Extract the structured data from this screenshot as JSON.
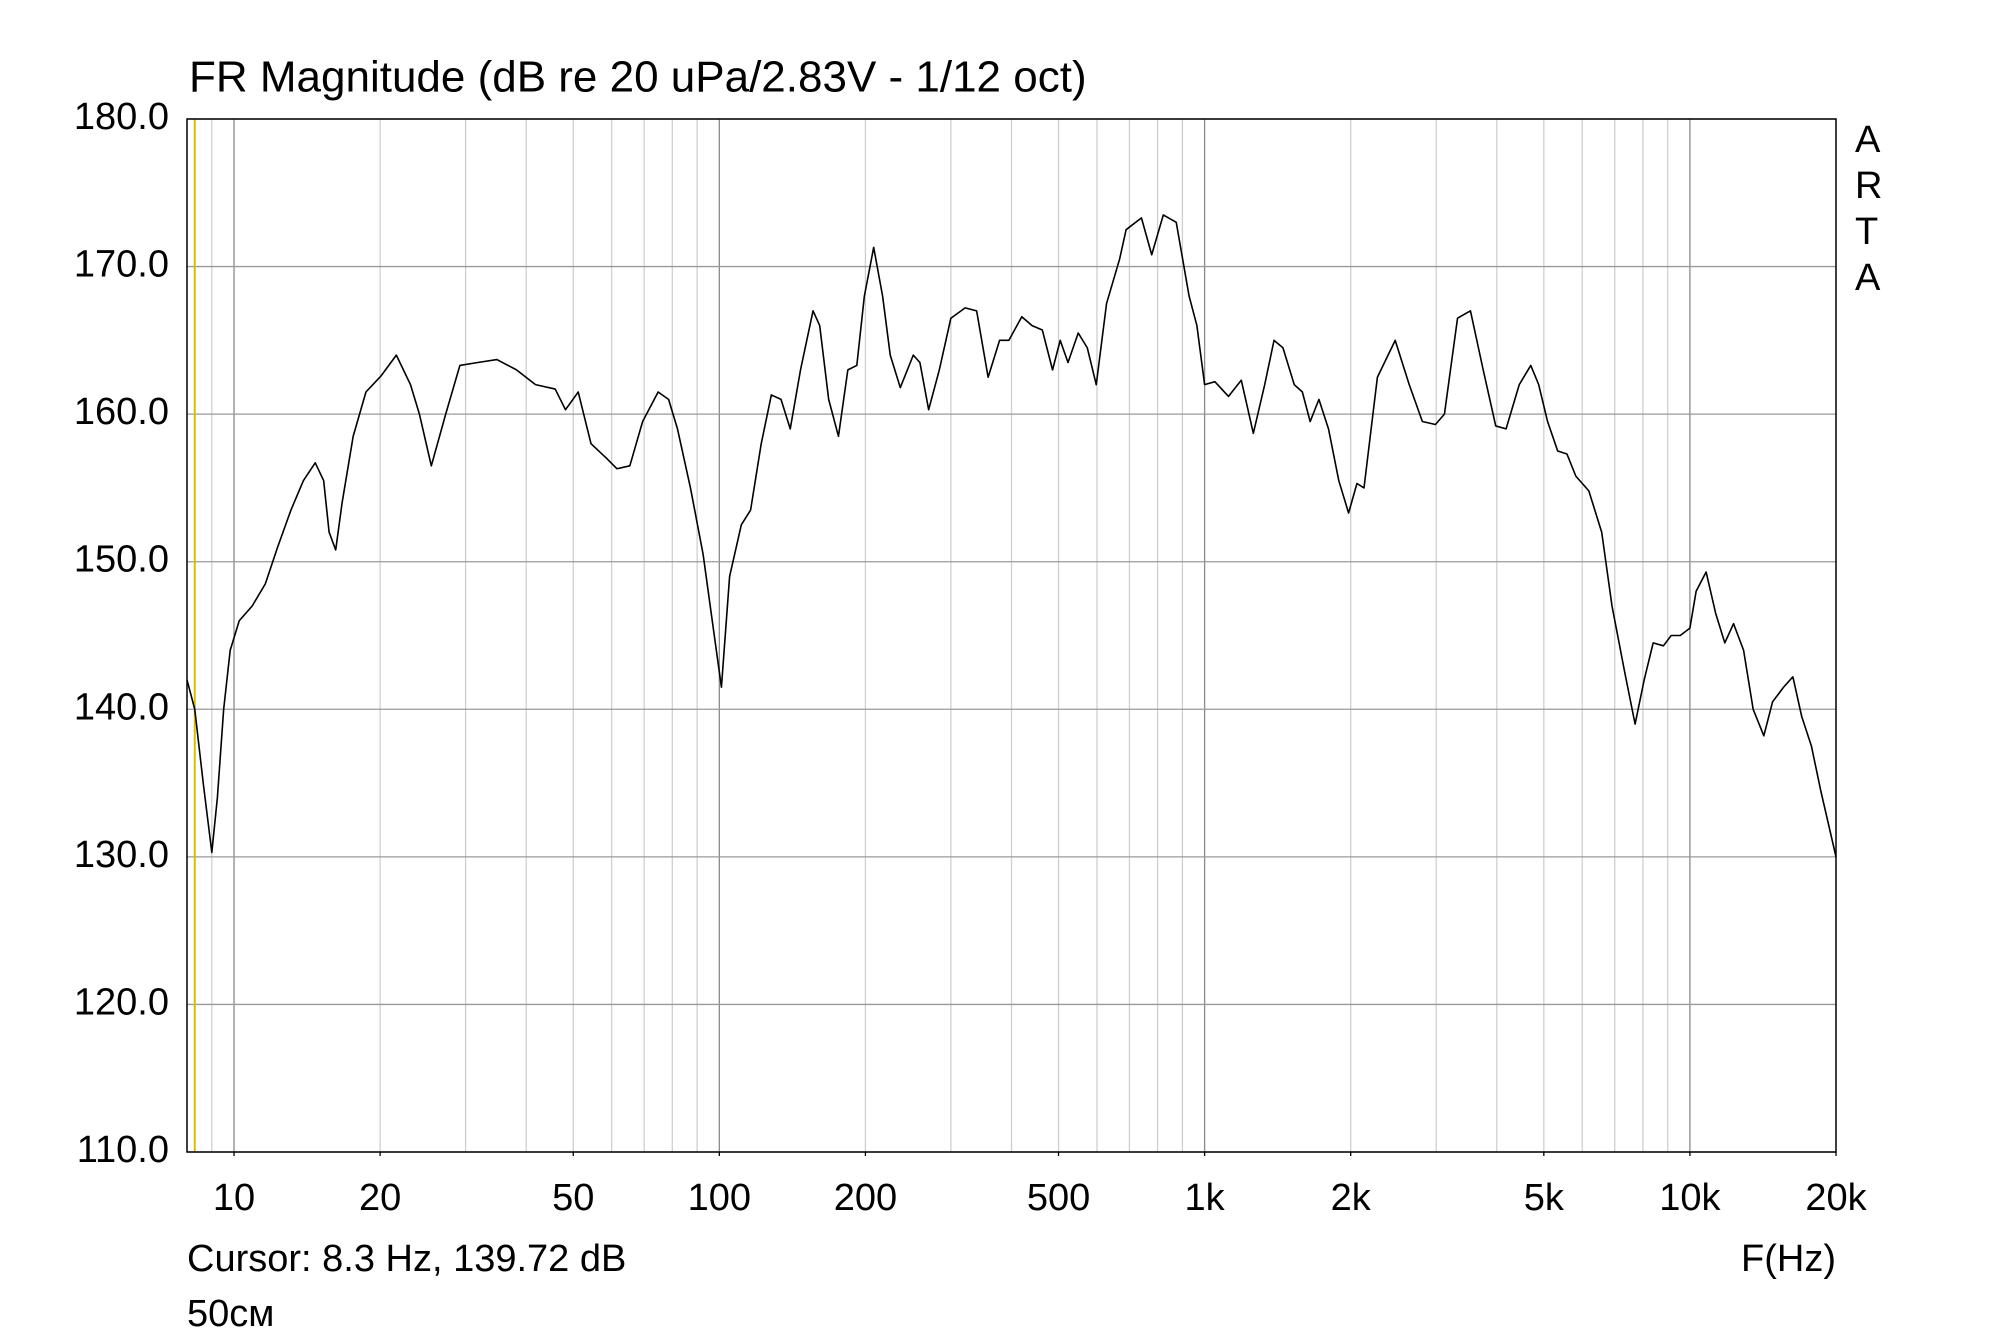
{
  "chart_data": {
    "type": "line",
    "title": "FR Magnitude (dB re 20 uPa/2.83V - 1/12 oct)",
    "xlabel": "F(Hz)",
    "brand": "ARTA",
    "note": "50см",
    "cursor": {
      "label": "Cursor: 8.3 Hz, 139.72 dB",
      "x": 8.3,
      "color": "#d4c000"
    },
    "xscale": "log",
    "xlim": [
      8,
      20000
    ],
    "ylim": [
      110,
      180
    ],
    "grid": true,
    "xticks": [
      10,
      20,
      50,
      100,
      200,
      500,
      {
        "value": 1000,
        "label": "1k"
      },
      {
        "value": 2000,
        "label": "2k"
      },
      {
        "value": 5000,
        "label": "5k"
      },
      {
        "value": 10000,
        "label": "10k"
      },
      {
        "value": 20000,
        "label": "20k"
      }
    ],
    "yticks": [
      {
        "value": 110,
        "label": "110.0"
      },
      {
        "value": 120,
        "label": "120.0"
      },
      {
        "value": 130,
        "label": "130.0"
      },
      {
        "value": 140,
        "label": "140.0"
      },
      {
        "value": 150,
        "label": "150.0"
      },
      {
        "value": 160,
        "label": "160.0"
      },
      {
        "value": 170,
        "label": "170.0"
      },
      {
        "value": 180,
        "label": "180.0"
      }
    ],
    "x": [
      8.0,
      8.3,
      8.64,
      9.0,
      9.24,
      9.52,
      9.82,
      10.25,
      10.9,
      11.6,
      12.3,
      13.1,
      13.9,
      14.7,
      15.3,
      15.7,
      16.2,
      16.7,
      17.6,
      18.7,
      20.1,
      21.6,
      23.1,
      24.1,
      25.5,
      27.3,
      29.2,
      31.8,
      34.8,
      38.2,
      41.8,
      45.9,
      48.2,
      51.2,
      54.4,
      58.6,
      61.5,
      65.4,
      69.5,
      74.8,
      78.6,
      82.0,
      87.2,
      92.6,
      96.7,
      101,
      105,
      111,
      116,
      122,
      128,
      134,
      140,
      147,
      156,
      161,
      168,
      176,
      184,
      192,
      199,
      208,
      217,
      225,
      236,
      251,
      259,
      270,
      284,
      300,
      321,
      339,
      358,
      378,
      395,
      420,
      441,
      463,
      486,
      504,
      523,
      549,
      573,
      598,
      628,
      668,
      689,
      741,
      778,
      822,
      874,
      929,
      964,
      1000,
      1050,
      1120,
      1190,
      1260,
      1330,
      1390,
      1450,
      1530,
      1590,
      1650,
      1720,
      1800,
      1890,
      1980,
      2060,
      2130,
      2270,
      2470,
      2640,
      2810,
      2990,
      3120,
      3320,
      3530,
      3750,
      3980,
      4180,
      4450,
      4700,
      4880,
      5090,
      5340,
      5580,
      5820,
      6190,
      6580,
      6910,
      7340,
      7710,
      8050,
      8400,
      8820,
      9150,
      9550,
      10000,
      10300,
      10800,
      11300,
      11800,
      12300,
      12900,
      13500,
      14200,
      14800,
      15600,
      16300,
      17000,
      17800,
      18600,
      20000
    ],
    "series": [
      {
        "color": "#000000",
        "values": [
          142,
          140,
          135,
          130.3,
          134,
          140,
          144,
          146,
          147,
          148.5,
          151,
          153.5,
          155.5,
          156.7,
          155.5,
          152,
          150.8,
          154,
          158.5,
          161.5,
          162.6,
          164,
          162,
          160,
          156.5,
          160,
          163.3,
          163.5,
          163.7,
          163,
          162,
          161.7,
          160.3,
          161.5,
          158,
          157,
          156.3,
          156.5,
          159.5,
          161.5,
          161,
          159,
          155,
          150.5,
          146,
          141.5,
          149,
          152.5,
          153.5,
          158,
          161.3,
          161,
          159,
          163,
          167,
          166,
          161,
          158.5,
          163,
          163.3,
          168,
          171.3,
          168,
          164,
          161.8,
          164,
          163.5,
          160.3,
          163,
          166.5,
          167.2,
          167,
          162.5,
          165,
          165,
          166.6,
          166,
          165.7,
          163,
          165,
          163.5,
          165.5,
          164.5,
          162,
          167.5,
          170.5,
          172.5,
          173.3,
          170.8,
          173.5,
          173,
          168,
          166,
          162,
          162.2,
          161.2,
          162.3,
          158.7,
          162,
          165,
          164.5,
          162,
          161.5,
          159.5,
          161,
          159,
          155.5,
          153.3,
          155.3,
          155,
          162.5,
          165,
          162,
          159.5,
          159.3,
          160,
          166.5,
          167,
          163,
          159.2,
          159,
          162,
          163.3,
          162,
          159.5,
          157.5,
          157.3,
          155.8,
          154.8,
          152,
          147,
          142.5,
          139,
          142,
          144.5,
          144.3,
          145,
          145,
          145.5,
          148,
          149.3,
          146.5,
          144.5,
          145.8,
          144,
          140,
          138.2,
          140.5,
          141.5,
          142.2,
          139.5,
          137.5,
          134.5,
          130
        ]
      }
    ]
  }
}
